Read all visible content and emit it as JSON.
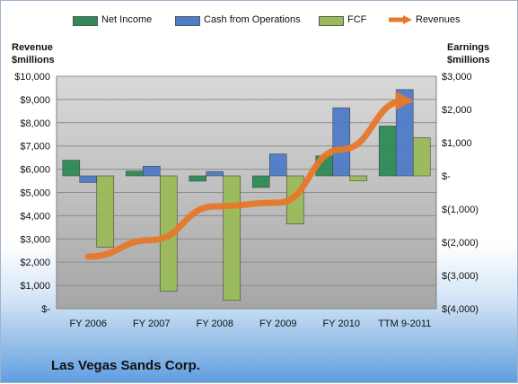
{
  "chart_data": {
    "type": "bar",
    "title": "",
    "company": "Las Vegas Sands Corp.",
    "categories": [
      "FY 2006",
      "FY 2007",
      "FY 2008",
      "FY 2009",
      "FY 2010",
      "TTM 9-2011"
    ],
    "left_axis": {
      "label_lines": [
        "Revenue",
        "$millions"
      ],
      "ylim": [
        0,
        10000
      ],
      "ticks": [
        "$-",
        "$1,000",
        "$2,000",
        "$3,000",
        "$4,000",
        "$5,000",
        "$6,000",
        "$7,000",
        "$8,000",
        "$9,000",
        "$10,000"
      ]
    },
    "right_axis": {
      "label_lines": [
        "Earnings",
        "$millions"
      ],
      "ylim": [
        -4000,
        3000
      ],
      "ticks": [
        "$(4,000)",
        "$(3,000)",
        "$(2,000)",
        "$(1,000)",
        "$-",
        "$1,000",
        "$2,000",
        "$3,000"
      ]
    },
    "series": [
      {
        "name": "Net Income",
        "type": "bar",
        "axis": "right",
        "color": "#2e8b57",
        "values": [
          470,
          145,
          -160,
          -350,
          600,
          1500
        ]
      },
      {
        "name": "Cash from Operations",
        "type": "bar",
        "axis": "right",
        "color": "#4f7cc8",
        "values": [
          -200,
          290,
          130,
          660,
          2050,
          2600
        ]
      },
      {
        "name": "FCF",
        "type": "bar",
        "axis": "right",
        "color": "#9bbb59",
        "values": [
          -2150,
          -3480,
          -3750,
          -1450,
          -150,
          1150
        ]
      },
      {
        "name": "Revenues",
        "type": "line",
        "axis": "left",
        "color": "#e8782a",
        "values": [
          2240,
          2950,
          4400,
          4560,
          6850,
          8950
        ]
      }
    ],
    "legend_position": "top",
    "grid": true
  }
}
